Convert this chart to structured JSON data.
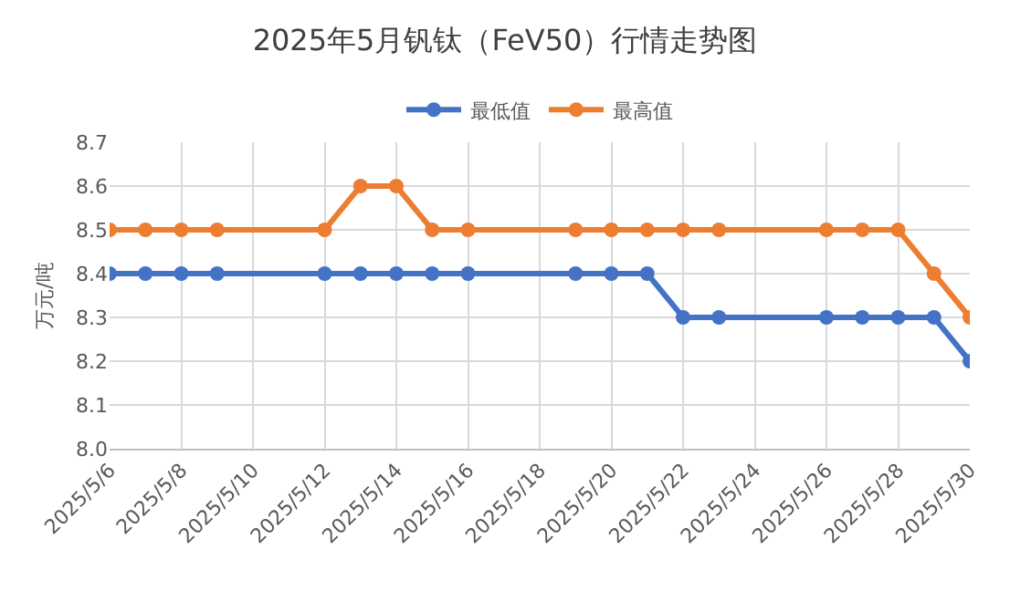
{
  "chart_data": {
    "type": "line",
    "title": "2025年5月钒钛（FeV50）行情走势图",
    "ylabel": "万元/吨",
    "x": [
      "2025-05-06",
      "2025-05-07",
      "2025-05-08",
      "2025-05-09",
      "2025-05-12",
      "2025-05-13",
      "2025-05-14",
      "2025-05-15",
      "2025-05-16",
      "2025-05-19",
      "2025-05-20",
      "2025-05-21",
      "2025-05-22",
      "2025-05-23",
      "2025-05-26",
      "2025-05-27",
      "2025-05-28",
      "2025-05-29",
      "2025-05-30"
    ],
    "series": [
      {
        "name": "最低值",
        "color": "#4472c4",
        "values": [
          8.4,
          8.4,
          8.4,
          8.4,
          8.4,
          8.4,
          8.4,
          8.4,
          8.4,
          8.4,
          8.4,
          8.4,
          8.3,
          8.3,
          8.3,
          8.3,
          8.3,
          8.3,
          8.2
        ]
      },
      {
        "name": "最高值",
        "color": "#ed7d31",
        "values": [
          8.5,
          8.5,
          8.5,
          8.5,
          8.5,
          8.6,
          8.6,
          8.5,
          8.5,
          8.5,
          8.5,
          8.5,
          8.5,
          8.5,
          8.5,
          8.5,
          8.5,
          8.4,
          8.3
        ]
      }
    ],
    "xlim": [
      "2025-05-06",
      "2025-05-30"
    ],
    "xticks": [
      {
        "value": "2025-05-06",
        "label": "2025/5/6"
      },
      {
        "value": "2025-05-08",
        "label": "2025/5/8"
      },
      {
        "value": "2025-05-10",
        "label": "2025/5/10"
      },
      {
        "value": "2025-05-12",
        "label": "2025/5/12"
      },
      {
        "value": "2025-05-14",
        "label": "2025/5/14"
      },
      {
        "value": "2025-05-16",
        "label": "2025/5/16"
      },
      {
        "value": "2025-05-18",
        "label": "2025/5/18"
      },
      {
        "value": "2025-05-20",
        "label": "2025/5/20"
      },
      {
        "value": "2025-05-22",
        "label": "2025/5/22"
      },
      {
        "value": "2025-05-24",
        "label": "2025/5/24"
      },
      {
        "value": "2025-05-26",
        "label": "2025/5/26"
      },
      {
        "value": "2025-05-28",
        "label": "2025/5/28"
      },
      {
        "value": "2025-05-30",
        "label": "2025/5/30"
      }
    ],
    "ylim": [
      8.0,
      8.7
    ],
    "yticks": [
      {
        "value": 8.0,
        "label": "8.0"
      },
      8.1,
      8.2,
      8.3,
      8.4,
      8.5,
      8.6,
      8.7
    ],
    "grid": true,
    "legend": "top",
    "marker": "circle",
    "line_style": "solid"
  }
}
